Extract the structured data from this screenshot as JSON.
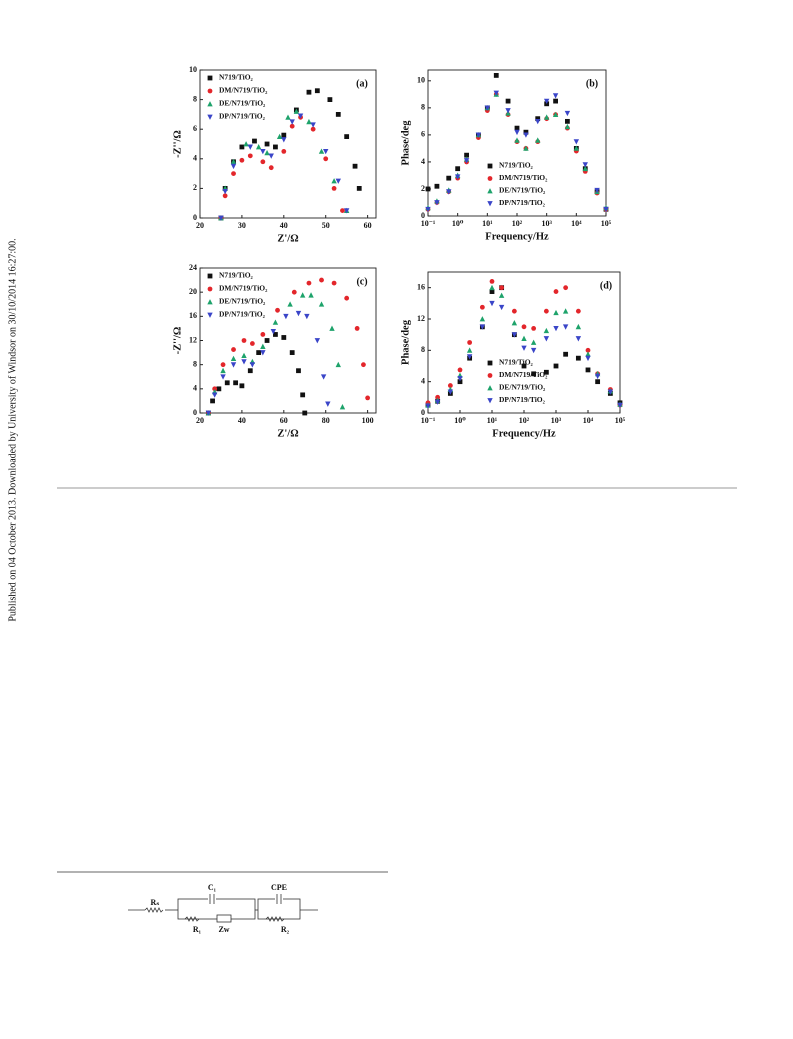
{
  "side_note": "Published on 04 October 2013. Downloaded by University of Windsor on 30/10/2014 16:27:00.",
  "chart_data": [
    {
      "type": "scatter",
      "title": "(a)",
      "x_label": "Z'/Ω",
      "y_label": "-Z''/Ω",
      "legend": "upper left",
      "xlim": [
        20,
        62
      ],
      "xticks": [
        20,
        30,
        40,
        50,
        60
      ],
      "ylim": [
        0,
        10
      ],
      "yticks": [
        0,
        2,
        4,
        6,
        8,
        10
      ],
      "series": [
        {
          "name": "N719/TiO₂",
          "color": "#111111",
          "marker": "square",
          "x": [
            25,
            26,
            28,
            30,
            33,
            36,
            38,
            40,
            43,
            46,
            48,
            51,
            53,
            55,
            57,
            58
          ],
          "values": [
            0,
            2,
            3.8,
            4.8,
            5.2,
            5,
            4.8,
            5.6,
            7.3,
            8.5,
            8.6,
            8,
            7,
            5.5,
            3.5,
            2
          ]
        },
        {
          "name": "DM/N719/TiO₂",
          "color": "#e3262b",
          "marker": "circle",
          "x": [
            25,
            26,
            28,
            30,
            32,
            35,
            37,
            40,
            42,
            44,
            47,
            50,
            52,
            54
          ],
          "values": [
            0,
            1.5,
            3,
            3.9,
            4.2,
            3.8,
            3.4,
            4.5,
            6.2,
            6.8,
            6,
            4,
            2,
            0.5
          ]
        },
        {
          "name": "DE/N719/TiO₂",
          "color": "#1ea36b",
          "marker": "triangle-up",
          "x": [
            25,
            26,
            28,
            31,
            34,
            36,
            39,
            41,
            43,
            46,
            49,
            52,
            55
          ],
          "values": [
            0,
            2,
            3.8,
            5,
            4.8,
            4.4,
            5.5,
            6.8,
            7.2,
            6.5,
            4.5,
            2.5,
            0.5
          ]
        },
        {
          "name": "DP/N719/TiO₂",
          "color": "#3a45c8",
          "marker": "triangle-down",
          "x": [
            25,
            26,
            28,
            32,
            35,
            37,
            40,
            42,
            44,
            47,
            50,
            53,
            55
          ],
          "values": [
            0,
            1.8,
            3.5,
            4.8,
            4.5,
            4.2,
            5.3,
            6.5,
            6.9,
            6.3,
            4.5,
            2.5,
            0.5
          ]
        }
      ]
    },
    {
      "type": "scatter",
      "title": "(b)",
      "x_label": "Frequency/Hz",
      "y_label": "Phase/deg",
      "legend": "lower center",
      "xscale": "log",
      "xlim": [
        0.1,
        100000
      ],
      "xticks": [
        {
          "value": 0.1,
          "label": "10⁻¹"
        },
        {
          "value": 1,
          "label": "10⁰"
        },
        {
          "value": 10,
          "label": "10¹"
        },
        {
          "value": 100,
          "label": "10²"
        },
        {
          "value": 1000,
          "label": "10³"
        },
        {
          "value": 10000,
          "label": "10⁴"
        },
        {
          "value": 100000,
          "label": "10⁵"
        }
      ],
      "ylim": [
        0,
        10.8
      ],
      "yticks": [
        0,
        2,
        4,
        6,
        8,
        10
      ],
      "x": [
        0.1,
        0.2,
        0.5,
        1,
        2,
        5,
        10,
        20,
        50,
        100,
        200,
        500,
        1000,
        2000,
        5000,
        10000,
        20000,
        50000,
        100000
      ],
      "series": [
        {
          "name": "N719/TiO₂",
          "color": "#111111",
          "marker": "square",
          "values": [
            2,
            2.2,
            2.8,
            3.5,
            4.5,
            6,
            8,
            10.4,
            8.5,
            6.5,
            6.2,
            7.2,
            8.3,
            8.5,
            7,
            5,
            3.5,
            1.8,
            0.5
          ]
        },
        {
          "name": "DM/N719/TiO₂",
          "color": "#e3262b",
          "marker": "circle",
          "values": [
            0.5,
            1,
            1.8,
            2.8,
            4,
            5.8,
            7.8,
            9,
            7.5,
            5.5,
            5,
            5.5,
            7.2,
            7.5,
            6.5,
            4.8,
            3.3,
            1.7,
            0.5
          ]
        },
        {
          "name": "DE/N719/TiO₂",
          "color": "#1ea36b",
          "marker": "triangle-up",
          "values": [
            0.6,
            1.1,
            1.9,
            3,
            4.2,
            6,
            8,
            9,
            7.6,
            5.6,
            5,
            5.6,
            7.3,
            7.5,
            6.6,
            5,
            3.5,
            1.8,
            0.6
          ]
        },
        {
          "name": "DP/N719/TiO₂",
          "color": "#3a45c8",
          "marker": "triangle-down",
          "values": [
            0.5,
            1,
            1.8,
            2.9,
            4.1,
            6,
            8,
            9.1,
            7.8,
            6.2,
            6,
            7,
            8.5,
            8.9,
            7.6,
            5.5,
            3.8,
            1.9,
            0.5
          ]
        }
      ]
    },
    {
      "type": "scatter",
      "title": "(c)",
      "x_label": "Z'/Ω",
      "y_label": "-Z''/Ω",
      "legend": "upper left",
      "xlim": [
        20,
        104
      ],
      "xticks": [
        20,
        40,
        60,
        80,
        100
      ],
      "ylim": [
        0,
        24
      ],
      "yticks": [
        0,
        4,
        8,
        12,
        16,
        20,
        24
      ],
      "series": [
        {
          "name": "N719/TiO₂",
          "color": "#111111",
          "marker": "square",
          "x": [
            24,
            26,
            29,
            33,
            37,
            40,
            44,
            48,
            52,
            56,
            60,
            64,
            67,
            69,
            70
          ],
          "values": [
            0,
            2,
            4,
            5,
            5,
            4.5,
            7,
            10,
            12,
            13,
            12.5,
            10,
            7,
            3,
            0
          ]
        },
        {
          "name": "DM/N719/TiO₂",
          "color": "#e3262b",
          "marker": "circle",
          "x": [
            24,
            27,
            31,
            36,
            41,
            45,
            50,
            57,
            65,
            72,
            78,
            84,
            90,
            95,
            98,
            100
          ],
          "values": [
            0,
            4,
            8,
            10.5,
            12,
            11.5,
            13,
            17,
            20,
            21.5,
            22,
            21.5,
            19,
            14,
            8,
            2.5
          ]
        },
        {
          "name": "DE/N719/TiO₂",
          "color": "#1ea36b",
          "marker": "triangle-up",
          "x": [
            24,
            27,
            31,
            36,
            41,
            45,
            50,
            56,
            63,
            69,
            73,
            78,
            83,
            86,
            88
          ],
          "values": [
            0,
            3.5,
            7,
            9,
            9.5,
            8.5,
            11,
            15,
            18,
            19.5,
            19.5,
            18,
            14,
            8,
            1
          ]
        },
        {
          "name": "DP/N719/TiO₂",
          "color": "#3a45c8",
          "marker": "triangle-down",
          "x": [
            24,
            27,
            31,
            36,
            41,
            45,
            50,
            55,
            61,
            67,
            71,
            76,
            79,
            81
          ],
          "values": [
            0,
            3,
            6,
            8,
            8.5,
            8,
            10,
            13.5,
            16,
            16.5,
            16,
            12,
            6,
            1.5
          ]
        }
      ]
    },
    {
      "type": "scatter",
      "title": "(d)",
      "x_label": "Frequency/Hz",
      "y_label": "Phase/deg",
      "legend": "lower center",
      "xscale": "log",
      "xlim": [
        0.1,
        100000
      ],
      "xticks": [
        {
          "value": 0.1,
          "label": "10⁻¹"
        },
        {
          "value": 1,
          "label": "10⁰"
        },
        {
          "value": 10,
          "label": "10¹"
        },
        {
          "value": 100,
          "label": "10²"
        },
        {
          "value": 1000,
          "label": "10³"
        },
        {
          "value": 10000,
          "label": "10⁴"
        },
        {
          "value": 100000,
          "label": "10⁵"
        }
      ],
      "ylim": [
        0,
        18
      ],
      "yticks": [
        0,
        4,
        8,
        12,
        16
      ],
      "x": [
        0.1,
        0.2,
        0.5,
        1,
        2,
        5,
        10,
        20,
        50,
        100,
        200,
        500,
        1000,
        2000,
        5000,
        10000,
        20000,
        50000,
        100000
      ],
      "series": [
        {
          "name": "N719/TiO₂",
          "color": "#111111",
          "marker": "square",
          "values": [
            1,
            1.5,
            2.5,
            4,
            7,
            11,
            15.5,
            16,
            10,
            6,
            5,
            5.2,
            6,
            7.5,
            7,
            5.5,
            4,
            2.5,
            1.3
          ]
        },
        {
          "name": "DM/N719/TiO₂",
          "color": "#e3262b",
          "marker": "circle",
          "values": [
            1.3,
            2,
            3.5,
            5.5,
            9,
            13.5,
            16.8,
            16,
            13,
            11,
            10.8,
            13,
            15.5,
            16,
            13,
            8,
            5,
            3,
            1
          ]
        },
        {
          "name": "DE/N719/TiO₂",
          "color": "#1ea36b",
          "marker": "triangle-up",
          "values": [
            1,
            1.6,
            3,
            4.8,
            8,
            12,
            16,
            15,
            11.5,
            9.5,
            9,
            10.5,
            12.8,
            13,
            11,
            7.5,
            5,
            2.8,
            1.1
          ]
        },
        {
          "name": "DP/N719/TiO₂",
          "color": "#3a45c8",
          "marker": "triangle-down",
          "values": [
            0.9,
            1.4,
            2.7,
            4.4,
            7.2,
            11,
            14,
            13.5,
            10,
            8.3,
            8,
            9.5,
            10.8,
            11,
            9.5,
            7,
            4.7,
            2.7,
            1
          ]
        }
      ]
    }
  ],
  "circuit": {
    "rs": "Rₛ",
    "c1": "C₁",
    "cpe": "CPE",
    "r1": "R₁",
    "zw": "Zw",
    "r2": "R₂"
  }
}
